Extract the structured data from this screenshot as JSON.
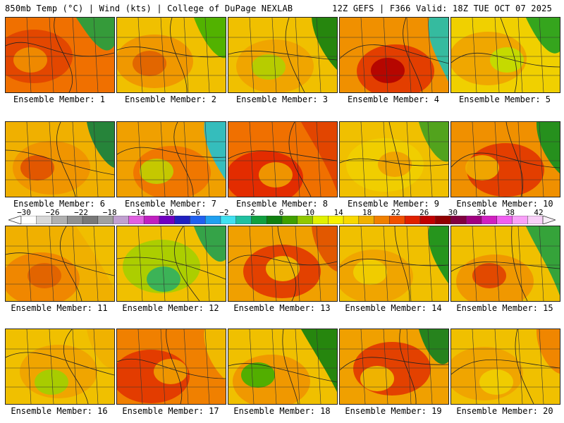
{
  "header": {
    "left": "850mb Temp (°C) | Wind (kts) | College of DuPage NEXLAB",
    "right": "12Z GEFS | F366 Valid: 18Z TUE OCT 07 2025"
  },
  "colors": {
    "cold_gray": "#808080",
    "purple": "#9040c0",
    "blue": "#2040e0",
    "cyan": "#10c0e0",
    "teal": "#20b080",
    "green": "#108010",
    "yellow_green": "#a0d000",
    "yellow": "#f8f000",
    "gold": "#f0c000",
    "orange": "#f08000",
    "red": "#e02000",
    "dark_red": "#a00000"
  },
  "colorbar": {
    "labels": [
      "-30",
      "-26",
      "-22",
      "-18",
      "-14",
      "-10",
      "-6",
      "-2",
      "2",
      "6",
      "10",
      "14",
      "18",
      "22",
      "26",
      "30",
      "34",
      "38",
      "42"
    ],
    "swatches": [
      "#ffffff",
      "#d8d8d8",
      "#b0b0b0",
      "#909090",
      "#787878",
      "#a0a0a0",
      "#c0a0d0",
      "#e060e0",
      "#c020c0",
      "#7000c0",
      "#2020c0",
      "#2060f0",
      "#20a0f0",
      "#40e0f0",
      "#20c0a0",
      "#10a040",
      "#108010",
      "#40a000",
      "#90c800",
      "#e0f000",
      "#f8f000",
      "#f8d800",
      "#f0b000",
      "#f08000",
      "#f05000",
      "#e02000",
      "#c00000",
      "#900000",
      "#800040",
      "#a00080",
      "#d020c0",
      "#f060f0",
      "#f8a0f8",
      "#f8d0f8"
    ]
  },
  "members": [
    {
      "label": "Ensemble Member: 1",
      "palette": [
        "#f07000",
        "#e04000",
        "#f09000",
        "#20a040"
      ]
    },
    {
      "label": "Ensemble Member: 2",
      "palette": [
        "#f0c000",
        "#f09000",
        "#e06000",
        "#40b000"
      ]
    },
    {
      "label": "Ensemble Member: 3",
      "palette": [
        "#f0c000",
        "#f0a000",
        "#b0d000",
        "#108010"
      ]
    },
    {
      "label": "Ensemble Member: 4",
      "palette": [
        "#f09000",
        "#e03000",
        "#b00000",
        "#20c0b0"
      ]
    },
    {
      "label": "Ensemble Member: 5",
      "palette": [
        "#f0d000",
        "#f0a000",
        "#c0e000",
        "#20a020"
      ]
    },
    {
      "label": "Ensemble Member: 6",
      "palette": [
        "#f0b000",
        "#f09000",
        "#e05000",
        "#108040"
      ]
    },
    {
      "label": "Ensemble Member: 7",
      "palette": [
        "#f0a000",
        "#f07000",
        "#c0d000",
        "#20c0d0"
      ]
    },
    {
      "label": "Ensemble Member: 8",
      "palette": [
        "#f07000",
        "#e02000",
        "#f0a000",
        "#e04000"
      ]
    },
    {
      "label": "Ensemble Member: 9",
      "palette": [
        "#f0c000",
        "#f0d000",
        "#f0a000",
        "#40a020"
      ]
    },
    {
      "label": "Ensemble Member: 10",
      "palette": [
        "#f09000",
        "#e03000",
        "#f0b000",
        "#109020"
      ]
    },
    {
      "label": "Ensemble Member: 11",
      "palette": [
        "#f0b000",
        "#f08000",
        "#e06000",
        "#f0c000"
      ]
    },
    {
      "label": "Ensemble Member: 12",
      "palette": [
        "#f0c000",
        "#a0d000",
        "#30b060",
        "#20a050"
      ]
    },
    {
      "label": "Ensemble Member: 13",
      "palette": [
        "#f0a000",
        "#e03000",
        "#f0c000",
        "#e05000"
      ]
    },
    {
      "label": "Ensemble Member: 14",
      "palette": [
        "#f0c000",
        "#f0a000",
        "#f0d000",
        "#109020"
      ]
    },
    {
      "label": "Ensemble Member: 15",
      "palette": [
        "#f0c000",
        "#f09000",
        "#e04000",
        "#20a040"
      ]
    },
    {
      "label": "Ensemble Member: 16",
      "palette": [
        "#f0c000",
        "#f0a000",
        "#a0d000",
        "#f0b000"
      ]
    },
    {
      "label": "Ensemble Member: 17",
      "palette": [
        "#f08000",
        "#e03000",
        "#f0a000",
        "#f0c000"
      ]
    },
    {
      "label": "Ensemble Member: 18",
      "palette": [
        "#f0c000",
        "#f09000",
        "#40b000",
        "#108010"
      ]
    },
    {
      "label": "Ensemble Member: 19",
      "palette": [
        "#f0a000",
        "#e03000",
        "#f0c000",
        "#108020"
      ]
    },
    {
      "label": "Ensemble Member: 20",
      "palette": [
        "#f0c000",
        "#f0a000",
        "#f0d000",
        "#f08000"
      ]
    }
  ]
}
